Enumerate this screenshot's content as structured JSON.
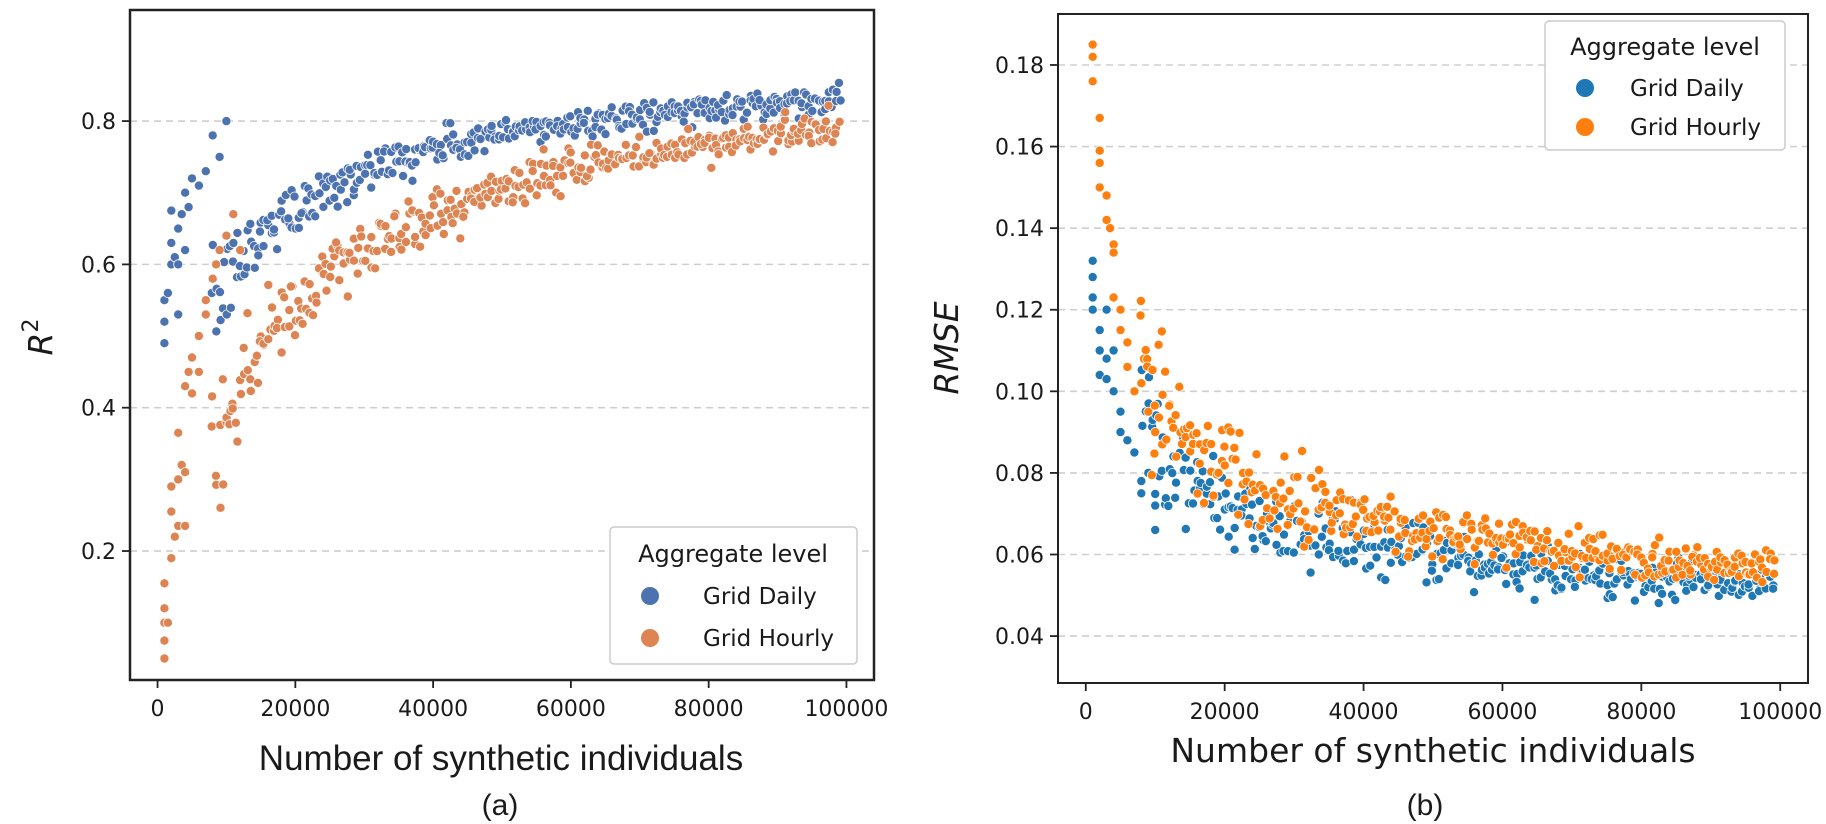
{
  "chart_data": [
    {
      "type": "scatter",
      "caption": "(a)",
      "xlabel": "Number of synthetic individuals",
      "ylabel_base": "R",
      "ylabel_sup": "2",
      "xlim": [
        -4000,
        104000
      ],
      "ylim": [
        0.02,
        0.955
      ],
      "xticks": [
        0,
        20000,
        40000,
        60000,
        80000,
        100000
      ],
      "yticks": [
        0.2,
        0.4,
        0.6,
        0.8
      ],
      "ytick_labels": [
        "0.2",
        "0.4",
        "0.6",
        "0.8"
      ],
      "grid": "y-dashed",
      "legend": {
        "title": "Aggregate level",
        "placement": "bottom-right"
      },
      "series": [
        {
          "name": "Grid Daily",
          "color": "#4c72b0",
          "model": {
            "type": "saturating",
            "a": 0.935,
            "b": 2600,
            "c": 0.6
          },
          "points": [
            [
              1000,
              0.49
            ],
            [
              1000,
              0.52
            ],
            [
              1000,
              0.55
            ],
            [
              1500,
              0.56
            ],
            [
              2000,
              0.6
            ],
            [
              2000,
              0.63
            ],
            [
              2000,
              0.675
            ],
            [
              2500,
              0.61
            ],
            [
              3000,
              0.53
            ],
            [
              3000,
              0.6
            ],
            [
              3000,
              0.65
            ],
            [
              3500,
              0.67
            ],
            [
              4000,
              0.62
            ],
            [
              4000,
              0.7
            ],
            [
              4500,
              0.68
            ],
            [
              5000,
              0.72
            ],
            [
              6000,
              0.71
            ],
            [
              7000,
              0.73
            ],
            [
              8000,
              0.78
            ],
            [
              9000,
              0.75
            ],
            [
              10000,
              0.8
            ]
          ]
        },
        {
          "name": "Grid Hourly",
          "color": "#dd8452",
          "model": {
            "type": "saturating",
            "a": 0.95,
            "b": 9000,
            "c": 0.72
          },
          "points": [
            [
              1000,
              0.05
            ],
            [
              1000,
              0.075
            ],
            [
              1000,
              0.1
            ],
            [
              1000,
              0.12
            ],
            [
              1000,
              0.155
            ],
            [
              1500,
              0.1
            ],
            [
              2000,
              0.19
            ],
            [
              2000,
              0.255
            ],
            [
              2000,
              0.29
            ],
            [
              2500,
              0.22
            ],
            [
              3000,
              0.235
            ],
            [
              3000,
              0.3
            ],
            [
              3000,
              0.365
            ],
            [
              3500,
              0.32
            ],
            [
              4000,
              0.235
            ],
            [
              4000,
              0.31
            ],
            [
              4000,
              0.43
            ],
            [
              4500,
              0.45
            ],
            [
              5000,
              0.42
            ],
            [
              5000,
              0.47
            ],
            [
              6000,
              0.45
            ],
            [
              6000,
              0.5
            ],
            [
              7000,
              0.53
            ],
            [
              7000,
              0.55
            ],
            [
              8000,
              0.58
            ],
            [
              8500,
              0.6
            ],
            [
              9000,
              0.62
            ],
            [
              10000,
              0.64
            ],
            [
              11000,
              0.67
            ],
            [
              12000,
              0.62
            ]
          ]
        }
      ]
    },
    {
      "type": "scatter",
      "caption": "(b)",
      "xlabel": "Number of synthetic individuals",
      "ylabel": "RMSE",
      "xlim": [
        -4000,
        104000
      ],
      "ylim": [
        0.0285,
        0.1925
      ],
      "xticks": [
        0,
        20000,
        40000,
        60000,
        80000,
        100000
      ],
      "yticks": [
        0.04,
        0.06,
        0.08,
        0.1,
        0.12,
        0.14,
        0.16,
        0.18
      ],
      "ytick_labels": [
        "0.04",
        "0.06",
        "0.08",
        "0.10",
        "0.12",
        "0.14",
        "0.16",
        "0.18"
      ],
      "grid": "y-dashed",
      "legend": {
        "title": "Aggregate level",
        "placement": "top-right"
      },
      "series": [
        {
          "name": "Grid Daily",
          "color": "#1f77b4",
          "model": {
            "type": "power",
            "k": 0.135,
            "p": 0.4,
            "x0": 1000,
            "floor": 0.031
          },
          "points": [
            [
              1000,
              0.132
            ],
            [
              1000,
              0.128
            ],
            [
              1000,
              0.123
            ],
            [
              1000,
              0.12
            ],
            [
              2000,
              0.115
            ],
            [
              2000,
              0.11
            ],
            [
              2000,
              0.104
            ],
            [
              3000,
              0.12
            ],
            [
              3000,
              0.108
            ],
            [
              3000,
              0.103
            ],
            [
              4000,
              0.11
            ],
            [
              4000,
              0.1
            ],
            [
              5000,
              0.095
            ],
            [
              5000,
              0.09
            ],
            [
              6000,
              0.088
            ],
            [
              7000,
              0.085
            ],
            [
              8000,
              0.078
            ],
            [
              8000,
              0.075
            ],
            [
              9000,
              0.08
            ],
            [
              10000,
              0.072
            ],
            [
              10000,
              0.066
            ]
          ]
        },
        {
          "name": "Grid Hourly",
          "color": "#ff7f0e",
          "model": {
            "type": "power",
            "k": 0.185,
            "p": 0.42,
            "x0": 1000,
            "floor": 0.03
          },
          "points": [
            [
              1000,
              0.185
            ],
            [
              1000,
              0.182
            ],
            [
              1000,
              0.176
            ],
            [
              2000,
              0.167
            ],
            [
              2000,
              0.159
            ],
            [
              2000,
              0.156
            ],
            [
              2000,
              0.15
            ],
            [
              3000,
              0.148
            ],
            [
              3000,
              0.142
            ],
            [
              3500,
              0.14
            ],
            [
              4000,
              0.136
            ],
            [
              4000,
              0.134
            ],
            [
              4000,
              0.123
            ],
            [
              5000,
              0.12
            ],
            [
              5000,
              0.115
            ],
            [
              6000,
              0.112
            ],
            [
              6000,
              0.106
            ],
            [
              7000,
              0.1
            ],
            [
              8000,
              0.102
            ],
            [
              9000,
              0.095
            ],
            [
              10000,
              0.09
            ],
            [
              11000,
              0.087
            ]
          ]
        }
      ]
    }
  ]
}
